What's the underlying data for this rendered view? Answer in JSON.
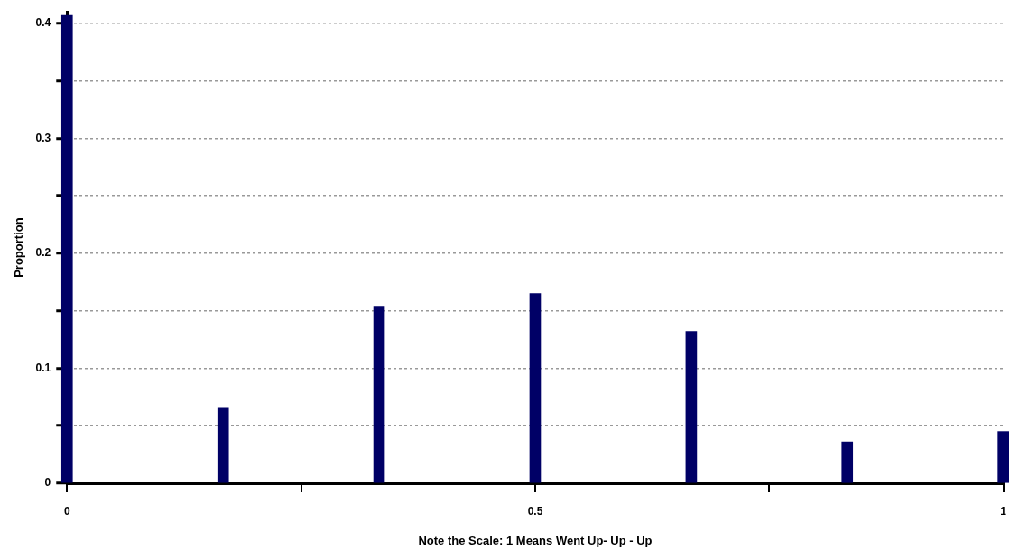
{
  "chart_data": {
    "type": "bar",
    "xlabel": "Note the Scale: 1 Means Went Up- Up - Up",
    "ylabel": "Proportion",
    "x": [
      0,
      0.1667,
      0.3333,
      0.5,
      0.6667,
      0.8333,
      1
    ],
    "values": [
      0.407,
      0.066,
      0.154,
      0.165,
      0.132,
      0.036,
      0.045
    ],
    "color": "#000066",
    "xlim": [
      0,
      1
    ],
    "xticks": [
      0,
      {
        "value": 0.25,
        "label": null
      },
      0.5,
      {
        "value": 0.75,
        "label": null
      },
      1
    ],
    "ylim": [
      0,
      0.41
    ],
    "yticks": [
      0,
      {
        "value": 0.05,
        "label": null
      },
      0.1,
      {
        "value": 0.15,
        "label": null
      },
      0.2,
      {
        "value": 0.25,
        "label": null
      },
      0.3,
      {
        "value": 0.35,
        "label": null
      },
      0.4
    ],
    "grid": "y"
  }
}
